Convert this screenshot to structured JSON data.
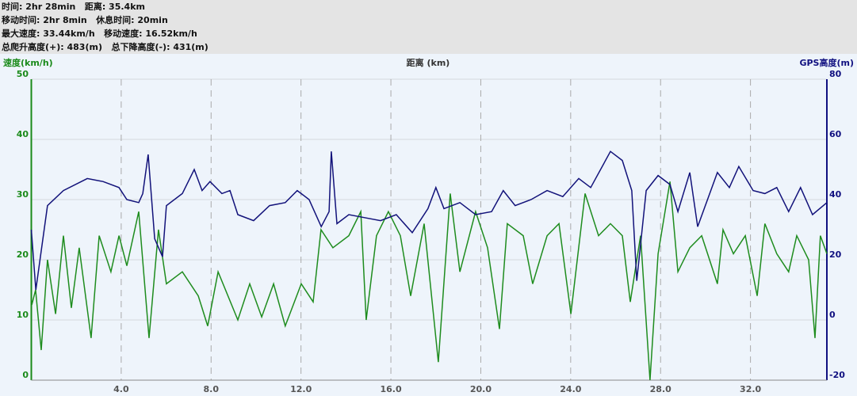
{
  "chart_data": {
    "type": "line",
    "summary": [
      "时间: 2hr 28min   距离: 35.4km",
      "移动时间: 2hr 8min   休息时间: 20min",
      "最大速度: 33.44km/h   移动速度: 16.52km/h",
      "总爬升高度(+): 483(m)   总下降高度(-): 431(m)"
    ],
    "xlabel": "距离 (km)",
    "ylabel": "速度(km/h)",
    "y2label": "GPS高度(m)",
    "ylabel_color": "#1a8a1a",
    "y2label_color": "#101080",
    "xlim": [
      0,
      35.4
    ],
    "xticks": [
      {
        "value": 4,
        "label": "4.0"
      },
      {
        "value": 8,
        "label": "8.0"
      },
      {
        "value": 12,
        "label": "12.0"
      },
      {
        "value": 16,
        "label": "16.0"
      },
      {
        "value": 20,
        "label": "20.0"
      },
      {
        "value": 24,
        "label": "24.0"
      },
      {
        "value": 28,
        "label": "28.0"
      },
      {
        "value": 32,
        "label": "32.0"
      }
    ],
    "ylim": [
      0,
      50
    ],
    "yticks": [
      0,
      10,
      20,
      30,
      40,
      50
    ],
    "y2lim": [
      -20,
      80
    ],
    "y2ticks": [
      -20,
      0,
      20,
      40,
      60,
      80
    ],
    "grid": true,
    "series": [
      {
        "color": "#1e8c1e",
        "axis": "y",
        "x": [
          0.02,
          0.19,
          0.44,
          0.72,
          1.08,
          1.43,
          1.78,
          2.13,
          2.66,
          3.02,
          3.54,
          3.9,
          4.25,
          4.78,
          5.24,
          5.66,
          6.01,
          6.72,
          7.43,
          7.85,
          8.31,
          9.19,
          9.72,
          10.25,
          10.78,
          11.3,
          12.01,
          12.54,
          12.89,
          13.42,
          14.13,
          14.66,
          14.9,
          15.36,
          15.89,
          16.42,
          16.88,
          17.48,
          18.11,
          18.64,
          19.07,
          19.77,
          20.3,
          20.83,
          21.18,
          21.89,
          22.31,
          22.95,
          23.48,
          24.01,
          24.64,
          25.24,
          25.77,
          26.3,
          26.65,
          27.11,
          27.53,
          27.89,
          28.42,
          28.77,
          29.3,
          29.83,
          30.53,
          30.78,
          31.24,
          31.77,
          32.3,
          32.64,
          33.17,
          33.7,
          34.06,
          34.59,
          34.87,
          35.11,
          35.4
        ],
        "values": [
          12.5,
          15,
          5,
          20,
          11,
          24,
          12,
          22,
          7,
          24,
          18,
          24,
          19,
          28,
          7,
          25,
          16,
          18,
          14,
          9,
          18,
          10,
          16,
          10.5,
          16,
          9,
          16,
          13,
          25,
          22,
          24,
          28,
          10,
          24,
          28,
          24,
          14,
          26,
          3,
          31,
          18,
          28,
          22,
          8.5,
          26,
          24,
          16,
          24,
          26,
          11,
          31,
          24,
          26,
          24,
          13,
          24,
          0,
          21,
          33,
          18,
          22,
          24,
          16,
          25,
          21,
          24,
          14,
          26,
          21,
          18,
          24,
          20,
          7,
          24,
          21
        ]
      },
      {
        "color": "#12127a",
        "axis": "y2",
        "x": [
          0.0,
          0.2,
          0.72,
          1.43,
          2.49,
          3.19,
          3.9,
          4.25,
          4.78,
          4.96,
          5.2,
          5.49,
          5.84,
          6.01,
          6.72,
          7.25,
          7.6,
          7.95,
          8.48,
          8.84,
          9.19,
          9.89,
          10.6,
          11.3,
          11.83,
          12.36,
          12.9,
          13.25,
          13.35,
          13.6,
          14.13,
          14.83,
          15.54,
          16.24,
          16.95,
          17.65,
          18.0,
          18.36,
          19.07,
          19.77,
          20.48,
          21.0,
          21.53,
          22.24,
          22.95,
          23.65,
          24.36,
          24.89,
          25.77,
          26.3,
          26.72,
          26.94,
          27.36,
          27.89,
          28.42,
          28.77,
          29.3,
          29.65,
          30.53,
          31.06,
          31.48,
          32.12,
          32.64,
          33.17,
          33.7,
          34.23,
          34.76,
          35.4
        ],
        "values": [
          30,
          10,
          38,
          43,
          47,
          46,
          44,
          40,
          39,
          42,
          55,
          27,
          21,
          38,
          42,
          50,
          43,
          46,
          42,
          43,
          35,
          33,
          38,
          39,
          43,
          40,
          31,
          36,
          56,
          32,
          35,
          34,
          33,
          35,
          29,
          37,
          44,
          37,
          39,
          35,
          36,
          43,
          38,
          40,
          43,
          41,
          47,
          44,
          56,
          53,
          43,
          13,
          43,
          48,
          45,
          36,
          49,
          31,
          49,
          44,
          51,
          43,
          42,
          44,
          36,
          44,
          35,
          39
        ]
      }
    ]
  }
}
